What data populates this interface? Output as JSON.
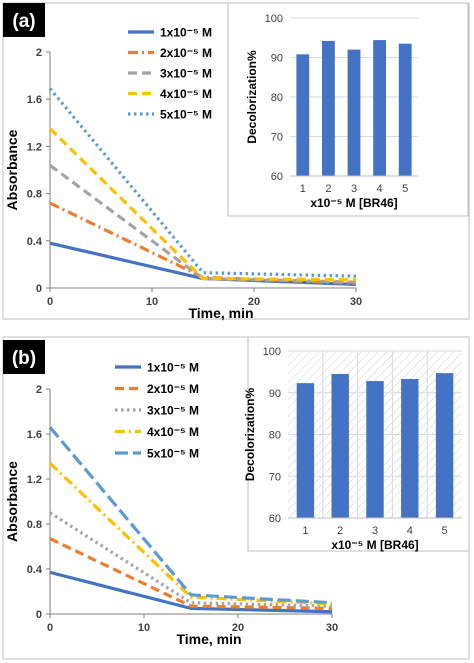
{
  "panels": [
    {
      "id": "a",
      "tag": "(a)",
      "line_chart": {
        "type": "line",
        "xlabel": "Time, min",
        "ylabel": "Absorbance",
        "xlim": [
          0,
          30
        ],
        "ylim": [
          0,
          2
        ],
        "x_ticks": [
          0,
          10,
          20,
          30
        ],
        "y_ticks": [
          "0",
          "0.4",
          "0.8",
          "1.2",
          "1.6",
          "2"
        ],
        "x": [
          0,
          15,
          30
        ],
        "series": [
          {
            "name": "1x10⁻⁵ M",
            "values": [
              0.38,
              0.08,
              0.03
            ],
            "color": "#4472c4",
            "dash": "solid"
          },
          {
            "name": "2x10⁻⁵ M",
            "values": [
              0.72,
              0.09,
              0.04
            ],
            "color": "#ed7d31",
            "dash": "dashdot"
          },
          {
            "name": "3x10⁻⁵ M",
            "values": [
              1.04,
              0.08,
              0.05
            ],
            "color": "#a5a5a5",
            "dash": "dash"
          },
          {
            "name": "4x10⁻⁵ M",
            "values": [
              1.35,
              0.08,
              0.07
            ],
            "color": "#ffc000",
            "dash": "dash"
          },
          {
            "name": "5x10⁻⁵ M",
            "values": [
              1.69,
              0.13,
              0.1
            ],
            "color": "#5b9bd5",
            "dash": "dot"
          }
        ]
      },
      "bar_chart": {
        "type": "bar",
        "xlabel": "x10⁻⁵ M  [BR46]",
        "ylabel": "Decolorization%",
        "ylim": [
          60,
          100
        ],
        "y_ticks": [
          "60",
          "70",
          "80",
          "90",
          "100"
        ],
        "categories": [
          "1",
          "2",
          "3",
          "4",
          "5"
        ],
        "values": [
          90.8,
          94.2,
          92.0,
          94.4,
          93.5
        ],
        "color": "#4472c4"
      }
    },
    {
      "id": "b",
      "tag": "(b)",
      "line_chart": {
        "type": "line",
        "xlabel": "Time, min",
        "ylabel": "Absorbance",
        "xlim": [
          0,
          30
        ],
        "ylim": [
          0,
          2
        ],
        "x_ticks": [
          0,
          10,
          20,
          30
        ],
        "y_ticks": [
          "0",
          "0.4",
          "0.8",
          "1.2",
          "1.6",
          "2"
        ],
        "x": [
          0,
          15,
          30
        ],
        "series": [
          {
            "name": "1x10⁻⁵ M",
            "values": [
              0.37,
              0.05,
              0.02
            ],
            "color": "#4472c4",
            "dash": "solid"
          },
          {
            "name": "2x10⁻⁵ M",
            "values": [
              0.67,
              0.07,
              0.05
            ],
            "color": "#ed7d31",
            "dash": "dash"
          },
          {
            "name": "3x10⁻⁵ M",
            "values": [
              0.9,
              0.1,
              0.07
            ],
            "color": "#a5a5a5",
            "dash": "dot"
          },
          {
            "name": "4x10⁻⁵ M",
            "values": [
              1.34,
              0.15,
              0.09
            ],
            "color": "#ffc000",
            "dash": "dashdot"
          },
          {
            "name": "5x10⁻⁵ M",
            "values": [
              1.66,
              0.17,
              0.1
            ],
            "color": "#5b9bd5",
            "dash": "longdash"
          }
        ]
      },
      "bar_chart": {
        "type": "bar",
        "xlabel": "x10⁻⁵ M  [BR46]",
        "ylabel": "Decolorization%",
        "ylim": [
          60,
          100
        ],
        "y_ticks": [
          "60",
          "70",
          "80",
          "90",
          "100"
        ],
        "categories": [
          "1",
          "2",
          "3",
          "4",
          "5"
        ],
        "values": [
          92.3,
          94.5,
          92.8,
          93.3,
          94.7
        ],
        "color": "#4472c4"
      }
    }
  ]
}
